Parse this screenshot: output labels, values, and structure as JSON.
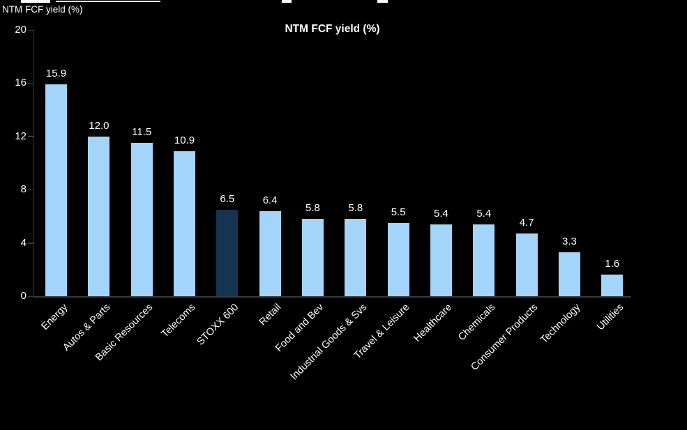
{
  "page": {
    "background_color": "#000000"
  },
  "chart_data": {
    "type": "bar",
    "title": "NTM FCF yield (%)",
    "ylabel": "NTM FCF yield (%)",
    "categories": [
      "Energy",
      "Autos & Parts",
      "Basic Resources",
      "Telecoms",
      "STOXX 600",
      "Retail",
      "Food and Bev",
      "Industrial Goods & Svs",
      "Travel & Leisure",
      "Healthcare",
      "Chemicals",
      "Consumer Products",
      "Technology",
      "Utilities"
    ],
    "values": [
      15.9,
      12.0,
      11.5,
      10.9,
      6.5,
      6.4,
      5.8,
      5.8,
      5.5,
      5.4,
      5.4,
      4.7,
      3.3,
      1.6
    ],
    "value_labels": [
      "15.9",
      "12.0",
      "11.5",
      "10.9",
      "6.5",
      "6.4",
      "5.8",
      "5.8",
      "5.5",
      "5.4",
      "5.4",
      "4.7",
      "3.3",
      "1.6"
    ],
    "highlight_category": "STOXX 600",
    "highlight_index": 4,
    "bar_color": "#a3d4f9",
    "highlight_color": "#143450",
    "text_color": "#ffffff",
    "axis_color": "#3a3a3a",
    "background_color": "#000000",
    "y_ticks": [
      0,
      4,
      8,
      12,
      16,
      20
    ],
    "ylim": [
      0,
      20
    ],
    "grid": "off",
    "legend": "none",
    "x_label_rotation": -45
  }
}
